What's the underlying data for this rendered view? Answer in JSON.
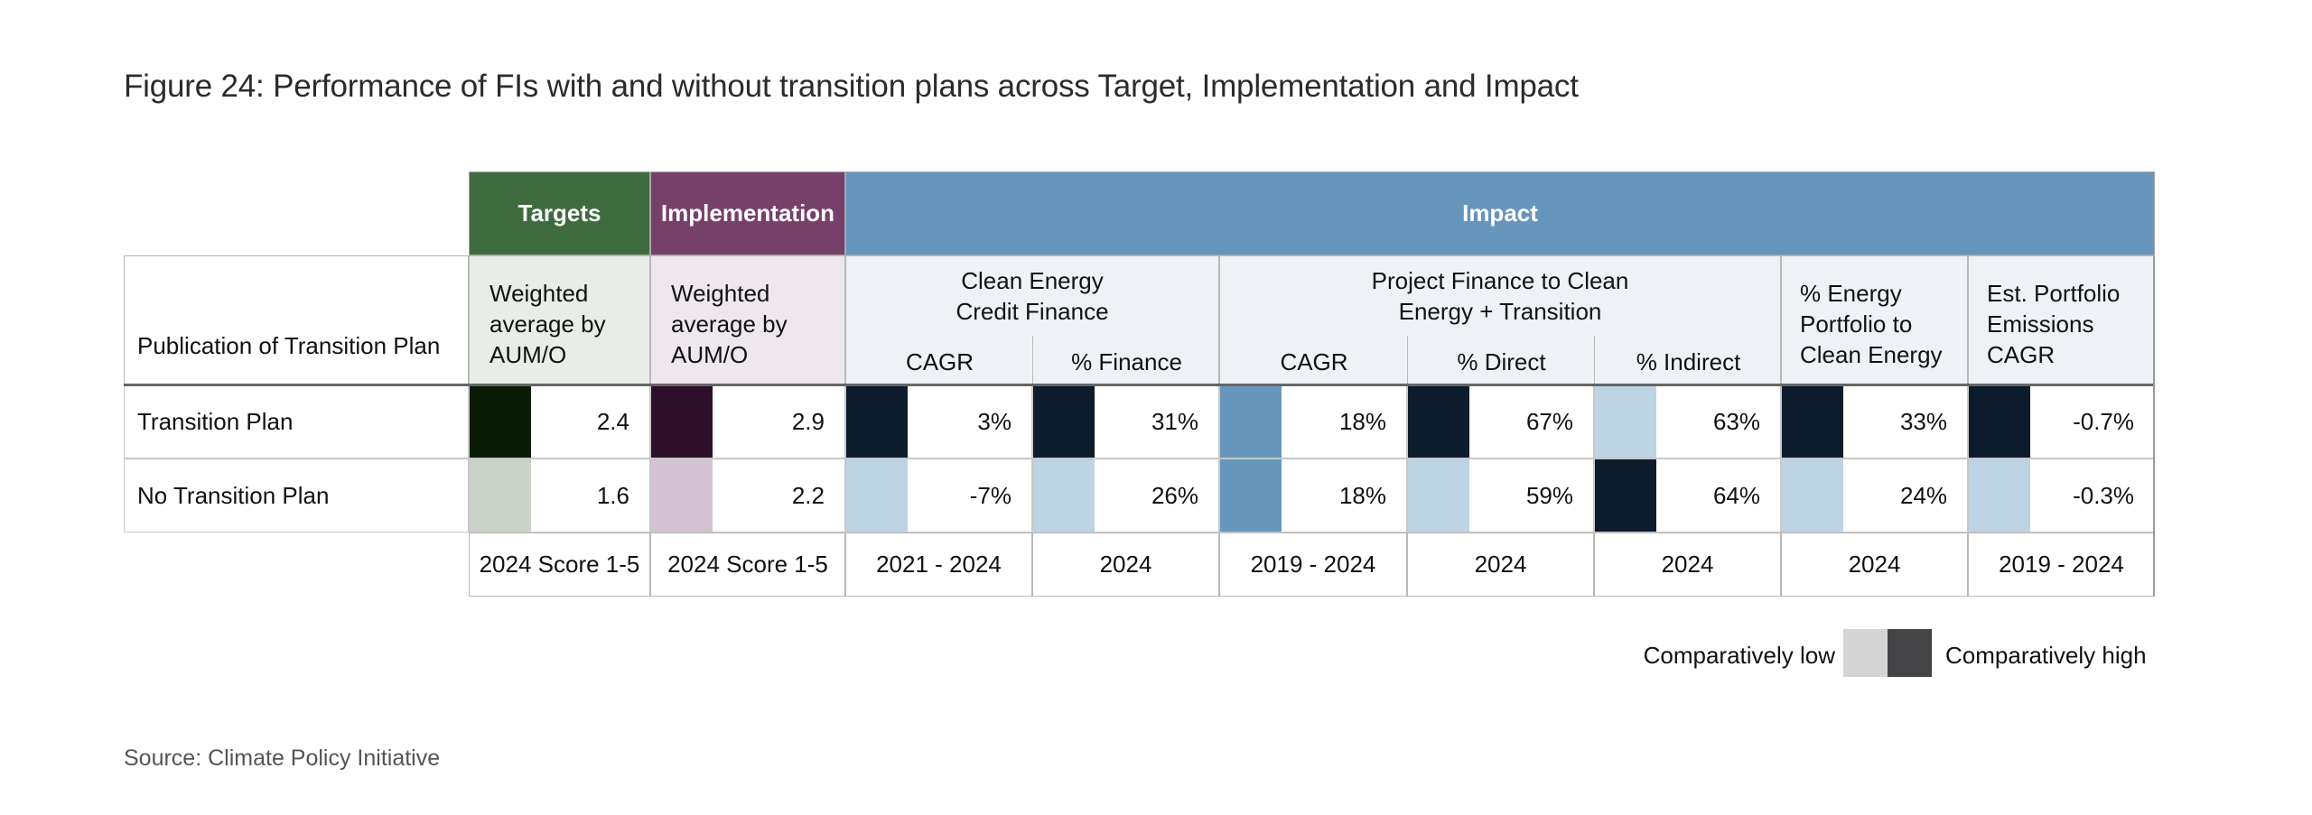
{
  "title": "Figure 24: Performance of FIs with and without transition plans across Target, Implementation and Impact",
  "source": "Source: Climate Policy Initiative",
  "colors": {
    "targets_header": "#3d6b3d",
    "implementation_header": "#76406a",
    "impact_header": "#6695bd",
    "targets_sub_bg": "#e9ede8",
    "implementation_sub_bg": "#efe7ee",
    "impact_sub_bg": "#eef2f6"
  },
  "chart_data": {
    "type": "table",
    "title": "Figure 24: Performance of FIs with and without transition plans across Target, Implementation and Impact",
    "row_header": "Publication of Transition Plan",
    "categories": [
      {
        "name": "Targets",
        "columns": [
          0
        ]
      },
      {
        "name": "Implementation",
        "columns": [
          1
        ]
      },
      {
        "name": "Impact",
        "columns": [
          2,
          3,
          4,
          5,
          6,
          7,
          8
        ]
      }
    ],
    "columns": [
      {
        "group": "Targets",
        "header": [
          "Weighted",
          "average by",
          "AUM/O"
        ],
        "period": "2024 Score 1-5"
      },
      {
        "group": "Implementation",
        "header": [
          "Weighted",
          "average by",
          "AUM/O"
        ],
        "period": "2024 Score 1-5"
      },
      {
        "group": "Clean Energy Credit Finance",
        "header": [
          "CAGR"
        ],
        "period": "2021 - 2024"
      },
      {
        "group": "Clean Energy Credit Finance",
        "header": [
          "% Finance"
        ],
        "period": "2024"
      },
      {
        "group": "Project Finance to Clean Energy + Transition",
        "header": [
          "CAGR"
        ],
        "period": "2019 - 2024"
      },
      {
        "group": "Project Finance to Clean Energy + Transition",
        "header": [
          "% Direct"
        ],
        "period": "2024"
      },
      {
        "group": "Project Finance to Clean Energy + Transition",
        "header": [
          "% Indirect"
        ],
        "period": "2024"
      },
      {
        "group": "",
        "header": [
          "% Energy",
          "Portfolio to",
          "Clean Energy"
        ],
        "period": "2024"
      },
      {
        "group": "",
        "header": [
          "Est. Portfolio",
          "Emissions",
          "CAGR"
        ],
        "period": "2019 - 2024"
      }
    ],
    "subgroups": [
      {
        "label_lines": [
          "Clean Energy",
          "Credit Finance"
        ]
      },
      {
        "label_lines": [
          "Project Finance to Clean",
          "Energy + Transition"
        ]
      }
    ],
    "rows": [
      {
        "label": "Transition Plan",
        "values": [
          "2.4",
          "2.9",
          "3%",
          "31%",
          "18%",
          "67%",
          "63%",
          "33%",
          "-0.7%"
        ],
        "numeric": [
          2.4,
          2.9,
          3,
          31,
          18,
          67,
          63,
          33,
          -0.7
        ],
        "level": [
          "high",
          "high",
          "high",
          "high",
          "equal",
          "high",
          "low",
          "high",
          "high"
        ],
        "tile_colors": [
          "#0a1c06",
          "#2e0f2a",
          "#0d1c2d",
          "#0d1c2d",
          "#6797bd",
          "#0d1c2d",
          "#bdd4e4",
          "#0d1c2d",
          "#0d1c2d"
        ]
      },
      {
        "label": "No Transition Plan",
        "values": [
          "1.6",
          "2.2",
          "-7%",
          "26%",
          "18%",
          "59%",
          "64%",
          "24%",
          "-0.3%"
        ],
        "numeric": [
          1.6,
          2.2,
          -7,
          26,
          18,
          59,
          64,
          24,
          -0.3
        ],
        "level": [
          "low",
          "low",
          "low",
          "low",
          "equal",
          "low",
          "high",
          "low",
          "low"
        ],
        "tile_colors": [
          "#cbd2c8",
          "#d4c1d1",
          "#bdd4e4",
          "#bdd4e4",
          "#6797bd",
          "#bdd4e4",
          "#0d1c2d",
          "#bdd4e4",
          "#bdd4e4"
        ]
      }
    ],
    "legend": {
      "low_label": "Comparatively low",
      "high_label": "Comparatively high",
      "low_color": "#d4d4d4",
      "high_color": "#444446",
      "placement": "bottom-right"
    }
  }
}
